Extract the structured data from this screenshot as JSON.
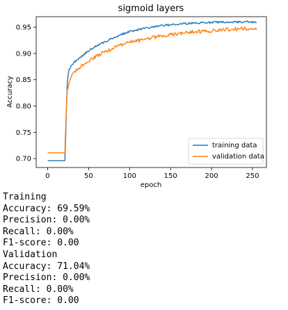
{
  "chart_data": {
    "type": "line",
    "title": "sigmoid layers",
    "xlabel": "epoch",
    "ylabel": "Accuracy",
    "xlim": [
      -14,
      267
    ],
    "ylim": [
      0.683,
      0.97
    ],
    "xticks": [
      0,
      50,
      100,
      150,
      200,
      250
    ],
    "yticks": [
      0.7,
      0.75,
      0.8,
      0.85,
      0.9,
      0.95
    ],
    "ytick_labels": [
      "0.70",
      "0.75",
      "0.80",
      "0.85",
      "0.90",
      "0.95"
    ],
    "legend_position": "lower-right",
    "grid": false,
    "n_epochs": 256,
    "series": [
      {
        "name": "training data",
        "color": "#1f77b4",
        "anchors": [
          [
            0,
            0.696
          ],
          [
            21,
            0.696
          ],
          [
            22,
            0.74
          ],
          [
            23,
            0.8
          ],
          [
            24,
            0.845
          ],
          [
            26,
            0.868
          ],
          [
            30,
            0.88
          ],
          [
            40,
            0.893
          ],
          [
            50,
            0.905
          ],
          [
            60,
            0.915
          ],
          [
            70,
            0.922
          ],
          [
            80,
            0.93
          ],
          [
            90,
            0.936
          ],
          [
            100,
            0.942
          ],
          [
            120,
            0.948
          ],
          [
            140,
            0.953
          ],
          [
            160,
            0.956
          ],
          [
            180,
            0.958
          ],
          [
            200,
            0.959
          ],
          [
            220,
            0.96
          ],
          [
            255,
            0.96
          ]
        ],
        "noise": 0.0018
      },
      {
        "name": "validation data",
        "color": "#ff7f0e",
        "anchors": [
          [
            0,
            0.711
          ],
          [
            21,
            0.711
          ],
          [
            22,
            0.76
          ],
          [
            23,
            0.8
          ],
          [
            24,
            0.83
          ],
          [
            26,
            0.845
          ],
          [
            30,
            0.862
          ],
          [
            40,
            0.875
          ],
          [
            50,
            0.885
          ],
          [
            60,
            0.895
          ],
          [
            70,
            0.903
          ],
          [
            80,
            0.91
          ],
          [
            90,
            0.916
          ],
          [
            100,
            0.921
          ],
          [
            120,
            0.927
          ],
          [
            140,
            0.934
          ],
          [
            160,
            0.938
          ],
          [
            180,
            0.941
          ],
          [
            200,
            0.943
          ],
          [
            220,
            0.946
          ],
          [
            255,
            0.948
          ]
        ],
        "noise": 0.0035
      }
    ]
  },
  "output": {
    "lines": [
      "Training",
      "Accuracy: 69.59%",
      "Precision: 0.00%",
      "Recall: 0.00%",
      "F1-score: 0.00",
      "Validation",
      "Accuracy: 71.04%",
      "Precision: 0.00%",
      "Recall: 0.00%",
      "F1-score: 0.00"
    ]
  }
}
